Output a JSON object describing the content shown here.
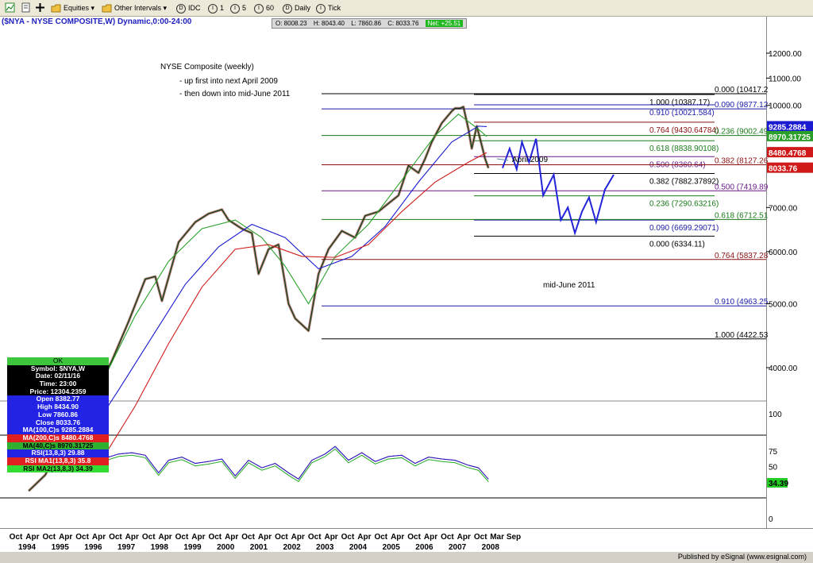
{
  "toolbar": {
    "equities": "Equities",
    "other_intervals": "Other Intervals",
    "idc": "IDC",
    "i1": "1",
    "i5": "5",
    "i60": "60",
    "daily": "Daily",
    "tick": "Tick",
    "d_label": "D",
    "i_label": "I",
    "dropdown_glyph": "▾"
  },
  "header": {
    "title": "($NYA - NYSE COMPOSITE,W) Dynamic,0:00-24:00",
    "open": "O: 8008.23",
    "high": "H: 8043.40",
    "low": "L: 7860.86",
    "close": "C: 8033.76",
    "net": "Net: +25.51"
  },
  "annotations": {
    "title": "NYSE Composite (weekly)",
    "line1": "- up first into next April 2009",
    "line2": "- then down into mid-June 2011",
    "april": "April 2009",
    "june": "mid-June 2011"
  },
  "fib_left": [
    {
      "label": "1.000 (10387.17)",
      "value": 10387.17,
      "color": "#000000"
    },
    {
      "label": "0.910 (10021.584)",
      "value": 10021.584,
      "color": "#1a1aa8"
    },
    {
      "label": "0.764 (9430.64784)",
      "value": 9430.64784,
      "color": "#8a1010"
    },
    {
      "label": "0.618 (8838.90108)",
      "value": 8838.90108,
      "color": "#1a7a1a"
    },
    {
      "label": "0.500 (8360.64)",
      "value": 8360.64,
      "color": "#6a1a8a"
    },
    {
      "label": "0.382 (7882.37892)",
      "value": 7882.37892,
      "color": "#000000"
    },
    {
      "label": "0.236 (7290.63216)",
      "value": 7290.63216,
      "color": "#1a7a1a"
    },
    {
      "label": "0.090 (6699.29071)",
      "value": 6699.29071,
      "color": "#1a1aa8"
    },
    {
      "label": "0.000 (6334.11)",
      "value": 6334.11,
      "color": "#000000"
    }
  ],
  "fib_right": [
    {
      "label": "0.000 (10417.2",
      "value": 10417.2,
      "color": "#000000"
    },
    {
      "label": "0.090 (9877.12",
      "value": 9877.12,
      "color": "#1a1aa8"
    },
    {
      "label": "0.236 (9002.49",
      "value": 9002.49,
      "color": "#1a7a1a"
    },
    {
      "label": "0.382 (8127.26",
      "value": 8127.26,
      "color": "#8a1010"
    },
    {
      "label": "0.500 (7419.89",
      "value": 7419.89,
      "color": "#6a1a8a"
    },
    {
      "label": "0.618 (6712.51",
      "value": 6712.51,
      "color": "#1a7a1a"
    },
    {
      "label": "0.764 (5837.28",
      "value": 5837.28,
      "color": "#8a1010"
    },
    {
      "label": "0.910 (4963.25",
      "value": 4963.25,
      "color": "#1a1aa8"
    },
    {
      "label": "1.000 (4422.53",
      "value": 4422.53,
      "color": "#000000"
    }
  ],
  "axis_tags": [
    {
      "label": "9285.2884",
      "value": 9285.2884,
      "color": "#1a1ad0"
    },
    {
      "label": "8970.31725",
      "value": 8970.31725,
      "color": "#2aa02a"
    },
    {
      "label": "8480.4768",
      "value": 8480.4768,
      "color": "#d01a1a"
    },
    {
      "label": "8033.76",
      "value": 8033.76,
      "color": "#d01a1a"
    }
  ],
  "rsi_tags": [
    {
      "label": "34.39",
      "color": "#22cc22"
    }
  ],
  "info_panel": {
    "ok": "OK",
    "symbol": "Symbol: $NYA,W",
    "date": "Date: 02/11/16",
    "time": "Time: 23:00",
    "price": "Price: 12304.2359",
    "open": "Open 8382.77",
    "high": "High 8434.90",
    "low": "Low 7860.86",
    "close": "Close 8033.76",
    "ma100": "MA(100,C)s 9285.2884",
    "ma200": "MA(200,C)s 8480.4768",
    "ma40": "MA(40,C)s 8970.31725",
    "rsi": "RSI(13,8,3) 29.88",
    "rsima1": "RSI MA1(13,8,3) 35.8",
    "rsima2": "RSI MA2(13,8,3) 34.39"
  },
  "price_axis_ticks": [
    {
      "label": "12000.00",
      "value": 12000
    },
    {
      "label": "11000.00",
      "value": 11000
    },
    {
      "label": "10000.00",
      "value": 10000
    },
    {
      "label": "7000.00",
      "value": 7000
    },
    {
      "label": "6000.00",
      "value": 6000
    },
    {
      "label": "5000.00",
      "value": 5000
    },
    {
      "label": "4000.00",
      "value": 4000
    }
  ],
  "rsi_axis_ticks": [
    {
      "label": "100",
      "value": 100
    },
    {
      "label": "75",
      "value": 75
    },
    {
      "label": "50",
      "value": 50
    },
    {
      "label": "25",
      "value": 25
    },
    {
      "label": "0",
      "value": 0
    }
  ],
  "x_axis": {
    "months": [
      "Oct",
      "Apr",
      "Oct",
      "Apr",
      "Oct",
      "Apr",
      "Oct",
      "Apr",
      "Oct",
      "Apr",
      "Oct",
      "Apr",
      "Oct",
      "Apr",
      "Oct",
      "Apr",
      "Oct",
      "Apr",
      "Oct",
      "Apr",
      "Oct",
      "Apr",
      "Oct",
      "Apr",
      "Oct",
      "Apr",
      "Oct",
      "Apr",
      "Oct",
      "Mar",
      "Sep"
    ],
    "years": [
      "1994",
      "1995",
      "1996",
      "1997",
      "1998",
      "1999",
      "2000",
      "2001",
      "2002",
      "2003",
      "2004",
      "2005",
      "2006",
      "2007",
      "2008"
    ]
  },
  "footer": "Published by eSignal (www.esignal.com)",
  "chart_data": {
    "type": "line",
    "title": "($NYA - NYSE COMPOSITE,W) Dynamic,0:00-24:00",
    "x_start": "1994-10",
    "x_end": "2009-09",
    "ylim": [
      3500,
      12600
    ],
    "price_series": {
      "name": "$NYA,W",
      "t": [
        1994.8,
        1995.3,
        1995.8,
        1996.3,
        1996.8,
        1997.3,
        1997.8,
        1998.3,
        1998.6,
        1998.8,
        1999.3,
        1999.8,
        2000.2,
        2000.6,
        2000.8,
        2001.2,
        2001.5,
        2001.7,
        2002.0,
        2002.3,
        2002.6,
        2002.8,
        2003.2,
        2003.5,
        2003.8,
        2004.2,
        2004.6,
        2004.9,
        2005.3,
        2005.6,
        2005.9,
        2006.2,
        2006.5,
        2006.7,
        2006.9,
        2007.2,
        2007.5,
        2007.6,
        2007.75,
        2007.85,
        2008.0,
        2008.1,
        2008.25,
        2008.4,
        2008.5,
        2008.6
      ],
      "values": [
        2600,
        2750,
        3100,
        3350,
        3650,
        4100,
        4700,
        5450,
        5500,
        5050,
        6200,
        6650,
        6850,
        6950,
        6700,
        6500,
        6400,
        5550,
        6050,
        6150,
        5000,
        4750,
        4550,
        5550,
        6050,
        6450,
        6300,
        6800,
        6900,
        7100,
        7300,
        8100,
        7900,
        8300,
        8800,
        9400,
        9800,
        9900,
        9900,
        9950,
        9200,
        8600,
        9300,
        8700,
        8300,
        8033.76
      ]
    },
    "ma_series": [
      {
        "name": "MA(40,C)s",
        "t": [
          1996.0,
          1997.0,
          1998.0,
          1999.0,
          2000.0,
          2001.0,
          2001.8,
          2002.5,
          2003.2,
          2004.0,
          2005.0,
          2006.0,
          2007.0,
          2007.7,
          2008.3,
          2008.55
        ],
        "values": [
          3200,
          3800,
          4800,
          5800,
          6500,
          6700,
          6300,
          5700,
          5000,
          5900,
          6600,
          7700,
          9000,
          9700,
          9200,
          8970.31725
        ]
      },
      {
        "name": "MA(100,C)s",
        "t": [
          1996.6,
          1997.5,
          1998.5,
          1999.5,
          2000.5,
          2001.5,
          2002.5,
          2003.5,
          2004.5,
          2005.5,
          2006.5,
          2007.5,
          2008.3,
          2008.55
        ],
        "values": [
          3150,
          3700,
          4450,
          5350,
          6100,
          6600,
          6300,
          5650,
          5900,
          6550,
          7650,
          8800,
          9300,
          9285.2884
        ]
      },
      {
        "name": "MA(200,C)s",
        "t": [
          1997.0,
          1998.0,
          1999.0,
          2000.0,
          2001.0,
          2002.0,
          2003.0,
          2004.0,
          2005.0,
          2006.0,
          2007.0,
          2008.0,
          2008.55
        ],
        "values": [
          2900,
          3500,
          4350,
          5300,
          6050,
          6150,
          5900,
          5880,
          6150,
          6900,
          7650,
          8200,
          8480.4768
        ]
      }
    ],
    "projection": {
      "name": "projection",
      "t": [
        2008.55,
        2008.75,
        2008.95,
        2009.1,
        2009.3,
        2009.5,
        2009.7,
        2010.0,
        2010.2,
        2010.4,
        2010.6,
        2010.8,
        2011.0,
        2011.2,
        2011.45,
        2011.7
      ],
      "values": [
        8033.76,
        8600,
        8000,
        8800,
        8200,
        8900,
        7300,
        7850,
        6700,
        7000,
        6400,
        6900,
        7250,
        6650,
        7450,
        7850
      ]
    },
    "rsi": {
      "name": "RSI(13,8,3)",
      "ylim": [
        0,
        100
      ],
      "t": [
        1994.8,
        1995.2,
        1995.5,
        1995.9,
        1996.2,
        1996.5,
        1996.8,
        1997.2,
        1997.5,
        1997.9,
        1998.3,
        1998.7,
        1999.0,
        1999.4,
        1999.8,
        2000.2,
        2000.6,
        2001.0,
        2001.4,
        2001.8,
        2002.2,
        2002.6,
        2002.9,
        2003.3,
        2003.7,
        2004.0,
        2004.4,
        2004.8,
        2005.2,
        2005.6,
        2006.0,
        2006.4,
        2006.8,
        2007.2,
        2007.6,
        2008.0,
        2008.3,
        2008.6
      ],
      "values": [
        60,
        55,
        72,
        68,
        70,
        62,
        75,
        65,
        70,
        72,
        68,
        40,
        60,
        65,
        55,
        58,
        62,
        35,
        60,
        48,
        55,
        40,
        30,
        60,
        70,
        82,
        60,
        72,
        58,
        66,
        68,
        55,
        65,
        62,
        60,
        52,
        48,
        29.88
      ]
    }
  }
}
